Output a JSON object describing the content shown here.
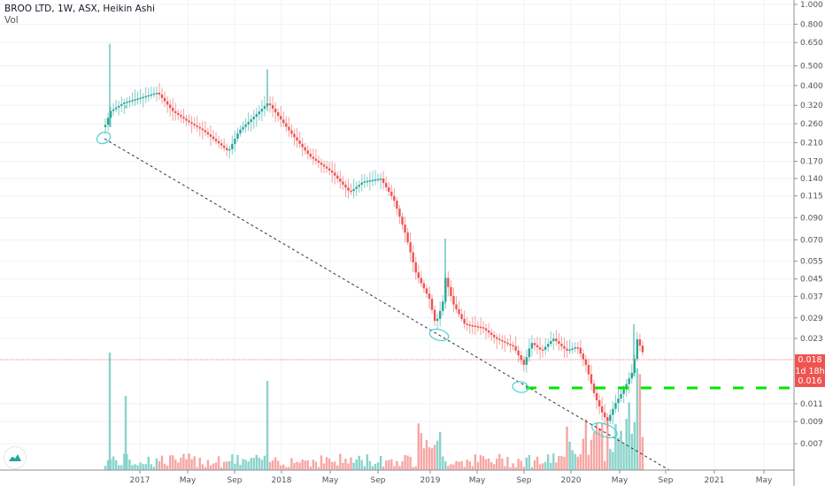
{
  "header": {
    "title": "BROO LTD, 1W, ASX, Heikin Ashi",
    "indicator": "Vol"
  },
  "price_tags": {
    "last": "0.018",
    "countdown": "1d 18h",
    "level": "0.016"
  },
  "colors": {
    "up": "#26a69a",
    "down": "#ef5350",
    "up_vol": "#89d3cb",
    "down_vol": "#f7a6a4",
    "grid": "#eef2f7",
    "trendline": "#333333",
    "support": "#00e600",
    "circle": "#4dd0d6"
  },
  "chart_data": {
    "type": "candlestick",
    "title": "BROO LTD, 1W, ASX, Heikin Ashi",
    "yscale": "log",
    "ylim": [
      0.006,
      1.0
    ],
    "y_ticks": [
      "1.000",
      "0.800",
      "0.650",
      "0.500",
      "0.400",
      "0.320",
      "0.260",
      "0.210",
      "0.170",
      "0.140",
      "0.115",
      "0.090",
      "0.070",
      "0.055",
      "0.045",
      "0.037",
      "0.029",
      "0.023",
      "0.018",
      "0.016",
      "0.011",
      "0.009",
      "0.007"
    ],
    "x_ticks": [
      "2017",
      "May",
      "Sep",
      "2018",
      "May",
      "Sep",
      "2019",
      "May",
      "Sep",
      "2020",
      "May",
      "Sep",
      "2021",
      "May"
    ],
    "last_price": 0.018,
    "support_level": 0.0125,
    "annotations": [
      "dashed descending trendline from ~0.21 (Oct 2016) to ~0.006 (Aug 2020)",
      "green dashed horizontal support ~0.0125",
      "cyan circles at trendline touches"
    ],
    "series_close_approx": [
      {
        "date": "2016-10",
        "close": 0.25
      },
      {
        "date": "2016-12",
        "close": 0.33
      },
      {
        "date": "2017-02",
        "close": 0.36
      },
      {
        "date": "2017-04",
        "close": 0.28
      },
      {
        "date": "2017-06",
        "close": 0.24
      },
      {
        "date": "2017-08",
        "close": 0.19
      },
      {
        "date": "2017-10",
        "close": 0.3
      },
      {
        "date": "2017-12",
        "close": 0.25
      },
      {
        "date": "2018-02",
        "close": 0.19
      },
      {
        "date": "2018-04",
        "close": 0.14
      },
      {
        "date": "2018-06",
        "close": 0.12
      },
      {
        "date": "2018-08",
        "close": 0.13
      },
      {
        "date": "2018-10",
        "close": 0.1
      },
      {
        "date": "2018-12",
        "close": 0.05
      },
      {
        "date": "2019-02",
        "close": 0.028
      },
      {
        "date": "2019-03",
        "close": 0.045
      },
      {
        "date": "2019-05",
        "close": 0.026
      },
      {
        "date": "2019-07",
        "close": 0.024
      },
      {
        "date": "2019-09",
        "close": 0.018
      },
      {
        "date": "2019-11",
        "close": 0.022
      },
      {
        "date": "2020-01",
        "close": 0.019
      },
      {
        "date": "2020-03",
        "close": 0.009
      },
      {
        "date": "2020-05",
        "close": 0.013
      },
      {
        "date": "2020-06",
        "close": 0.022
      },
      {
        "date": "2020-07",
        "close": 0.018
      }
    ]
  }
}
